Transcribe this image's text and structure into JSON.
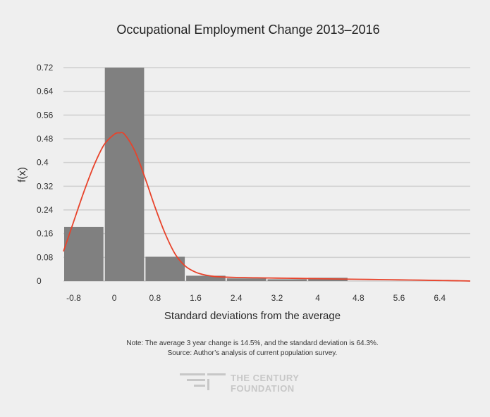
{
  "chart_data": {
    "type": "bar",
    "title": "Occupational Employment Change 2013–2016",
    "xlabel": "Standard deviations from the average",
    "ylabel": "f(x)",
    "xlim": [
      -1.0,
      7.0
    ],
    "ylim": [
      0,
      0.72
    ],
    "xticks": [
      -0.8,
      0,
      0.8,
      1.6,
      2.4,
      3.2,
      4,
      4.8,
      5.6,
      6.4
    ],
    "xtick_labels": [
      "-0.8",
      "0",
      "0.8",
      "1.6",
      "2.4",
      "3.2",
      "4",
      "4.8",
      "5.6",
      "6.4"
    ],
    "yticks": [
      0,
      0.08,
      0.16,
      0.24,
      0.32,
      0.4,
      0.48,
      0.56,
      0.64,
      0.72
    ],
    "ytick_labels": [
      "0",
      "0.08",
      "0.16",
      "0.24",
      "0.32",
      "0.4",
      "0.48",
      "0.56",
      "0.64",
      "0.72"
    ],
    "grid": true,
    "bars": [
      {
        "x0": -1.0,
        "x1": -0.2,
        "value": 0.183
      },
      {
        "x0": -0.2,
        "x1": 0.6,
        "value": 0.72
      },
      {
        "x0": 0.6,
        "x1": 1.4,
        "value": 0.082
      },
      {
        "x0": 1.4,
        "x1": 2.2,
        "value": 0.018
      },
      {
        "x0": 2.2,
        "x1": 3.0,
        "value": 0.009
      },
      {
        "x0": 3.0,
        "x1": 3.8,
        "value": 0.006
      },
      {
        "x0": 3.8,
        "x1": 4.6,
        "value": 0.011
      }
    ],
    "curve": {
      "x": [
        -1.0,
        -0.8,
        -0.6,
        -0.4,
        -0.2,
        0.0,
        0.1,
        0.2,
        0.4,
        0.6,
        0.8,
        1.0,
        1.2,
        1.4,
        1.6,
        1.8,
        2.0,
        2.4,
        2.8,
        3.2,
        3.6,
        4.0,
        4.4,
        4.8,
        5.2,
        5.6,
        6.0,
        6.4,
        6.8,
        7.0
      ],
      "y": [
        0.1,
        0.2,
        0.3,
        0.39,
        0.46,
        0.495,
        0.5,
        0.495,
        0.44,
        0.35,
        0.25,
        0.16,
        0.09,
        0.05,
        0.03,
        0.02,
        0.015,
        0.012,
        0.011,
        0.01,
        0.009,
        0.008,
        0.007,
        0.006,
        0.005,
        0.004,
        0.003,
        0.002,
        0.001,
        0.0
      ]
    },
    "colors": {
      "bar": "#808080",
      "curve": "#e8432b",
      "grid": "#cfcfcf",
      "background": "#efefef"
    }
  },
  "note": {
    "line1": "Note: The average 3 year change is 14.5%, and the standard deviation is 64.3%.",
    "line2": "Source: Author’s analysis of current population survey."
  },
  "logo": {
    "line1": "THE CENTURY",
    "line2": "FOUNDATION",
    "icon": "century-foundation-logo-icon"
  }
}
